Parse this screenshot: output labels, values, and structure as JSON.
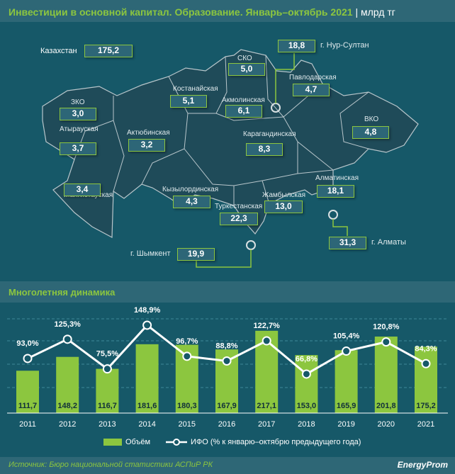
{
  "title": "Инвестиции в основной капитал. Образование. Январь–октябрь 2021",
  "unit": "млрд тг",
  "map": {
    "country": {
      "label": "Казахстан",
      "value": "175,2"
    },
    "regions": [
      {
        "label": "г. Нур-Султан",
        "value": "18,8"
      },
      {
        "label": "СКО",
        "value": "5,0"
      },
      {
        "label": "Павлодарская",
        "value": "4,7"
      },
      {
        "label": "Костанайская",
        "value": "5,1"
      },
      {
        "label": "Акмолинская",
        "value": "6,1"
      },
      {
        "label": "ЗКО",
        "value": "3,0"
      },
      {
        "label": "ВКО",
        "value": "4,8"
      },
      {
        "label": "Атырауская",
        "value": "3,7"
      },
      {
        "label": "Актюбинская",
        "value": "3,2"
      },
      {
        "label": "Карагандинская",
        "value": "8,3"
      },
      {
        "label": "Алматинская",
        "value": "18,1"
      },
      {
        "label": "Кызылординская",
        "value": "4,3"
      },
      {
        "label": "Жамбылская",
        "value": "13,0"
      },
      {
        "label": "Туркестанская",
        "value": "22,3"
      },
      {
        "label": "Мангистауская",
        "value": "3,4"
      },
      {
        "label": "г. Шымкент",
        "value": "19,9"
      },
      {
        "label": "г. Алматы",
        "value": "31,3"
      }
    ]
  },
  "section_title": "Многолетняя динамика",
  "chart_data": {
    "type": "bar",
    "categories": [
      "2011",
      "2012",
      "2013",
      "2014",
      "2015",
      "2016",
      "2017",
      "2018",
      "2019",
      "2020",
      "2021"
    ],
    "series": [
      {
        "name": "Объём",
        "type": "bar",
        "values": [
          111.7,
          148.2,
          116.7,
          181.6,
          180.3,
          167.9,
          217.1,
          153.0,
          165.9,
          201.8,
          175.2
        ],
        "labels": [
          "111,7",
          "148,2",
          "116,7",
          "181,6",
          "180,3",
          "167,9",
          "217,1",
          "153,0",
          "165,9",
          "201,8",
          "175,2"
        ]
      },
      {
        "name": "ИФО (% к январю–октябрю предыдущего года)",
        "type": "line",
        "values": [
          93.0,
          125.3,
          75.5,
          148.9,
          96.7,
          88.8,
          122.7,
          66.8,
          105.4,
          120.8,
          84.3
        ],
        "labels": [
          "93,0%",
          "125,3%",
          "75,5%",
          "148,9%",
          "96,7%",
          "88,8%",
          "122,7%",
          "66,8%",
          "105,4%",
          "120,8%",
          "84,3%"
        ]
      }
    ],
    "colors": {
      "bar": "#8cc63f",
      "line": "#ffffff"
    }
  },
  "source": "Источник: Бюро национальной статистики АСПиР РК",
  "brand": "EnergyProm"
}
